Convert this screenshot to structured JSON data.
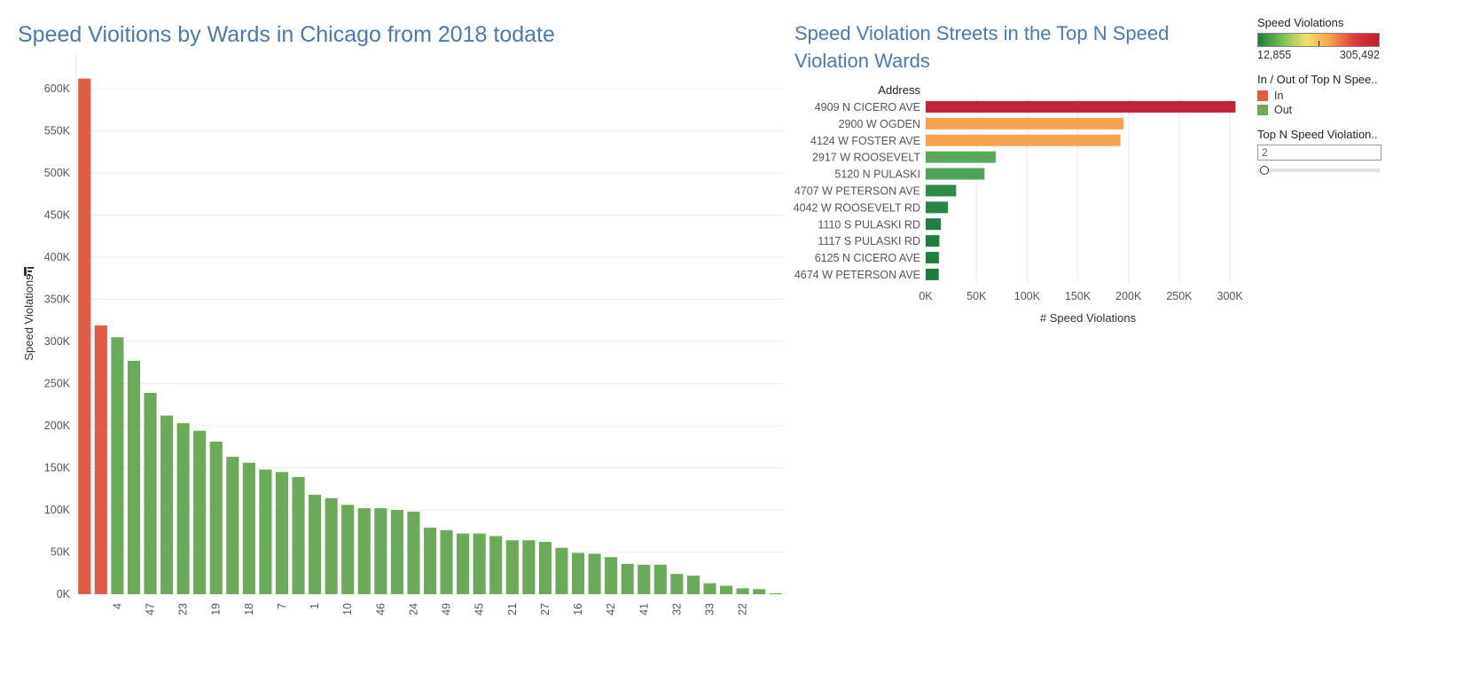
{
  "left_chart": {
    "title": "Speed Vioitions by Wards in Chicago from 2018 todate",
    "ylabel": "Speed Violations",
    "colors": {
      "in": "#e15c45",
      "out": "#6aaa59"
    }
  },
  "right_chart": {
    "title": "Speed Violation Streets in the Top N Speed Violation Wards",
    "row_header": "Address",
    "xlabel": "# Speed Violations"
  },
  "legend": {
    "color_title": "Speed Violations",
    "color_min": "12,855",
    "color_max": "305,492",
    "inout_title": "In / Out of Top N Spee..",
    "inout_items": [
      {
        "label": "In",
        "color": "#e15c45"
      },
      {
        "label": "Out",
        "color": "#6aaa59"
      }
    ],
    "param_title": "Top N Speed Violation..",
    "param_value": "2"
  },
  "chart_data": [
    {
      "type": "bar",
      "title": "Speed Vioitions by Wards in Chicago from 2018 todate",
      "xlabel": "",
      "ylabel": "Speed Violations",
      "ylim": [
        0,
        640000
      ],
      "yticks": [
        0,
        50000,
        100000,
        150000,
        200000,
        250000,
        300000,
        350000,
        400000,
        450000,
        500000,
        550000,
        600000
      ],
      "ytick_labels": [
        "0K",
        "50K",
        "100K",
        "150K",
        "200K",
        "250K",
        "300K",
        "350K",
        "400K",
        "450K",
        "500K",
        "550K",
        "600K"
      ],
      "x_tick_labels": [
        "4",
        "47",
        "23",
        "19",
        "18",
        "7",
        "1",
        "10",
        "46",
        "24",
        "49",
        "45",
        "21",
        "27",
        "16",
        "42",
        "41",
        "32",
        "33",
        "22"
      ],
      "x_tick_label_every": 2,
      "x_tick_label_offset": 2,
      "grid": true,
      "values": [
        612000,
        319000,
        305000,
        277000,
        239000,
        212000,
        203000,
        194000,
        181000,
        163000,
        156000,
        148000,
        145000,
        139000,
        118000,
        114000,
        106000,
        102000,
        102000,
        100000,
        98000,
        79000,
        76000,
        72000,
        72000,
        69000,
        64000,
        64000,
        62000,
        55000,
        49000,
        48000,
        44000,
        36000,
        35000,
        35000,
        24000,
        22000,
        13000,
        10000,
        7000,
        6000,
        1000
      ],
      "in_top_n": [
        true,
        true,
        false,
        false,
        false,
        false,
        false,
        false,
        false,
        false,
        false,
        false,
        false,
        false,
        false,
        false,
        false,
        false,
        false,
        false,
        false,
        false,
        false,
        false,
        false,
        false,
        false,
        false,
        false,
        false,
        false,
        false,
        false,
        false,
        false,
        false,
        false,
        false,
        false,
        false,
        false,
        false,
        false
      ]
    },
    {
      "type": "bar",
      "orientation": "horizontal",
      "title": "Speed Violation Streets in the Top N Speed Violation Wards",
      "xlabel": "# Speed Violations",
      "ylabel": "Address",
      "categories": [
        "4909 N CICERO AVE",
        "2900 W OGDEN",
        "4124 W FOSTER AVE",
        "2917 W ROOSEVELT",
        "5120 N PULASKI",
        "4707 W PETERSON AVE",
        "4042 W ROOSEVELT RD",
        "1110 S PULASKI RD",
        "1117 S PULASKI RD",
        "6125 N CICERO AVE",
        "4674 W PETERSON AVE"
      ],
      "values": [
        305492,
        195000,
        192000,
        69000,
        58000,
        30000,
        22000,
        15000,
        13500,
        13000,
        12855
      ],
      "bar_colors": [
        "#c0263a",
        "#f6a24e",
        "#f6a24e",
        "#57a95d",
        "#4ea45a",
        "#2d8a47",
        "#2a8545",
        "#1f7d40",
        "#1f7d40",
        "#1f7d40",
        "#1e7c40"
      ],
      "xlim": [
        0,
        320000
      ],
      "xticks": [
        0,
        50000,
        100000,
        150000,
        200000,
        250000,
        300000
      ],
      "xtick_labels": [
        "0K",
        "50K",
        "100K",
        "150K",
        "200K",
        "250K",
        "300K"
      ],
      "grid": true
    }
  ]
}
